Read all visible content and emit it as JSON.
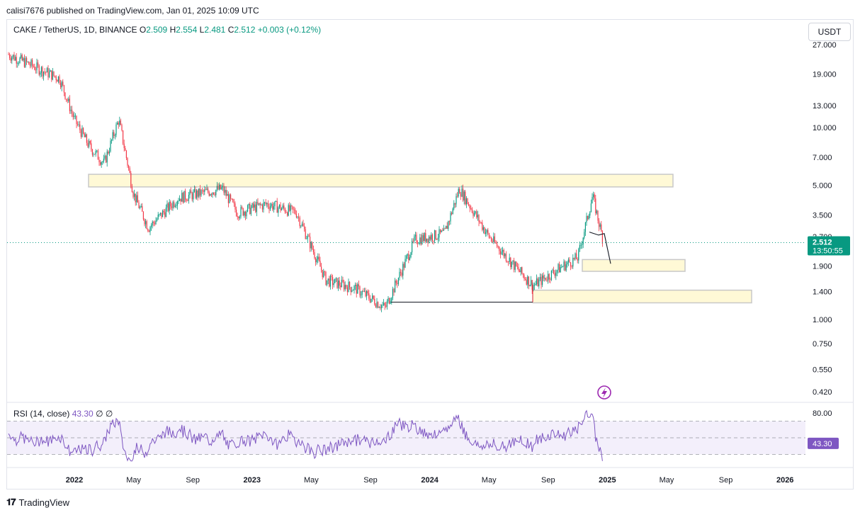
{
  "header": {
    "published": "calisi7676 published on TradingView.com, Jan 01, 2025 10:09 UTC"
  },
  "legend": {
    "symbol": "CAKE / TetherUS, 1D, BINANCE",
    "open_label": "O",
    "open": "2.509",
    "high_label": "H",
    "high": "2.554",
    "low_label": "L",
    "low": "2.481",
    "close_label": "C",
    "close": "2.512",
    "change": "+0.003 (+0.12%)"
  },
  "currency_button": "USDT",
  "price_axis": {
    "ticks": [
      {
        "label": "27.000",
        "value": 27
      },
      {
        "label": "19.000",
        "value": 19
      },
      {
        "label": "13.000",
        "value": 13
      },
      {
        "label": "10.000",
        "value": 10
      },
      {
        "label": "7.000",
        "value": 7
      },
      {
        "label": "5.000",
        "value": 5
      },
      {
        "label": "3.500",
        "value": 3.5
      },
      {
        "label": "2.700",
        "value": 2.7
      },
      {
        "label": "1.900",
        "value": 1.9
      },
      {
        "label": "1.400",
        "value": 1.4
      },
      {
        "label": "1.000",
        "value": 1.0
      },
      {
        "label": "0.750",
        "value": 0.75
      },
      {
        "label": "0.550",
        "value": 0.55
      },
      {
        "label": "0.420",
        "value": 0.42
      }
    ],
    "last_price": "2.512",
    "countdown": "13:50:55"
  },
  "rsi": {
    "label": "RSI (14, close)",
    "value": "43.30",
    "extra1": "∅",
    "extra2": "∅",
    "ticks": [
      {
        "label": "80.00",
        "value": 80
      }
    ],
    "last_value": "43.30",
    "upper_band": 70,
    "lower_band": 30
  },
  "time_axis": [
    {
      "label": "2022",
      "bold": true
    },
    {
      "label": "May",
      "bold": false
    },
    {
      "label": "Sep",
      "bold": false
    },
    {
      "label": "2023",
      "bold": true
    },
    {
      "label": "May",
      "bold": false
    },
    {
      "label": "Sep",
      "bold": false
    },
    {
      "label": "2024",
      "bold": true
    },
    {
      "label": "May",
      "bold": false
    },
    {
      "label": "Sep",
      "bold": false
    },
    {
      "label": "2025",
      "bold": true
    },
    {
      "label": "May",
      "bold": false
    },
    {
      "label": "Sep",
      "bold": false
    },
    {
      "label": "2026",
      "bold": true
    }
  ],
  "footer": {
    "brand": "TradingView"
  },
  "colors": {
    "up": "#089981",
    "down": "#f23645",
    "zone_fill": "#fff9d6",
    "zone_border": "#c8c8c8",
    "rsi_line": "#7e57c2",
    "rsi_band": "#f3effb",
    "last_price": "#089981"
  },
  "chart_data": {
    "type": "candlestick",
    "title": "CAKE / TetherUS, 1D, BINANCE",
    "scale": "log",
    "ylim": [
      0.38,
      30
    ],
    "x_range": [
      "2021-11",
      "2026-03"
    ],
    "approx_close_path": [
      {
        "date": "2021-11",
        "close": 24
      },
      {
        "date": "2021-12",
        "close": 18
      },
      {
        "date": "2022-01",
        "close": 11
      },
      {
        "date": "2022-02",
        "close": 8
      },
      {
        "date": "2022-03",
        "close": 6.5
      },
      {
        "date": "2022-04",
        "close": 11
      },
      {
        "date": "2022-05",
        "close": 4.5
      },
      {
        "date": "2022-06",
        "close": 3.0
      },
      {
        "date": "2022-08",
        "close": 4.3
      },
      {
        "date": "2022-11",
        "close": 4.8
      },
      {
        "date": "2022-12",
        "close": 3.6
      },
      {
        "date": "2023-02",
        "close": 4.0
      },
      {
        "date": "2023-04",
        "close": 3.6
      },
      {
        "date": "2023-06",
        "close": 1.6
      },
      {
        "date": "2023-08",
        "close": 1.45
      },
      {
        "date": "2023-10",
        "close": 1.15
      },
      {
        "date": "2023-12",
        "close": 2.6
      },
      {
        "date": "2024-02",
        "close": 2.8
      },
      {
        "date": "2024-03",
        "close": 4.8
      },
      {
        "date": "2024-05",
        "close": 2.7
      },
      {
        "date": "2024-07",
        "close": 1.8
      },
      {
        "date": "2024-08",
        "close": 1.5
      },
      {
        "date": "2024-10",
        "close": 1.9
      },
      {
        "date": "2024-11",
        "close": 2.1
      },
      {
        "date": "2024-12",
        "close": 4.4
      },
      {
        "date": "2025-01",
        "close": 2.512
      }
    ],
    "zones": [
      {
        "name": "resistance",
        "low": 4.9,
        "high": 5.7
      },
      {
        "name": "support-1",
        "low": 1.78,
        "high": 2.05
      },
      {
        "name": "support-2",
        "low": 1.22,
        "high": 1.42
      }
    ],
    "lines": [
      {
        "name": "support-line",
        "price": 1.23
      }
    ],
    "last_close": 2.512
  }
}
